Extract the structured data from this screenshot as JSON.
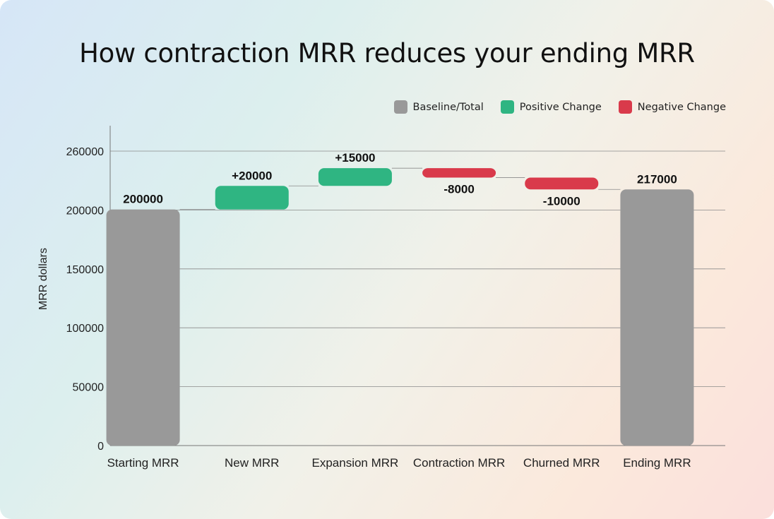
{
  "chart_data": {
    "type": "waterfall",
    "title": "How contraction MRR reduces your ending MRR",
    "ylabel": "MRR dollars",
    "xlabel": "",
    "ylim": [
      0,
      271000
    ],
    "grid": true,
    "legend_placement": "top-right",
    "y_tick_labels": [
      "0",
      "50000",
      "100000",
      "150000",
      "200000",
      "260000"
    ],
    "legend": [
      {
        "label": "Baseline/Total",
        "color": "#999999"
      },
      {
        "label": "Positive Change",
        "color": "#2fb582"
      },
      {
        "label": "Negative Change",
        "color": "#d93a4b"
      }
    ],
    "categories": [
      "Starting MRR",
      "New MRR",
      "Expansion MRR",
      "Contraction MRR",
      "Churned MRR",
      "Ending MRR"
    ],
    "bars": [
      {
        "kind": "total",
        "start": 0,
        "end": 200000,
        "label": "200000"
      },
      {
        "kind": "positive",
        "start": 200000,
        "end": 220000,
        "label": "+20000"
      },
      {
        "kind": "positive",
        "start": 220000,
        "end": 235000,
        "label": "+15000"
      },
      {
        "kind": "negative",
        "start": 235000,
        "end": 227000,
        "label": "-8000"
      },
      {
        "kind": "negative",
        "start": 227000,
        "end": 217000,
        "label": "-10000"
      },
      {
        "kind": "total",
        "start": 0,
        "end": 217000,
        "label": "217000"
      }
    ]
  }
}
